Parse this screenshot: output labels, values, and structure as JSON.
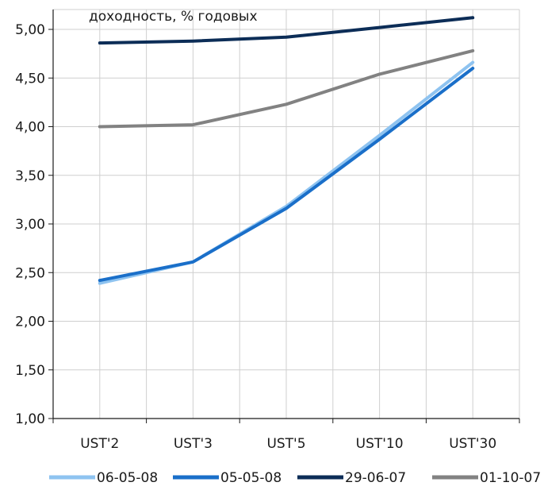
{
  "chart_data": {
    "type": "line",
    "title": "доходность, % годовых",
    "categories": [
      "UST'2",
      "UST'3",
      "UST'5",
      "UST'10",
      "UST'30"
    ],
    "ylim": [
      1.0,
      5.25
    ],
    "yticks": [
      "1,00",
      "1,50",
      "2,00",
      "2,50",
      "3,00",
      "3,50",
      "4,00",
      "4,50",
      "5,00"
    ],
    "grid": true,
    "legend_position": "bottom",
    "series": [
      {
        "name": "06-05-08",
        "color": "#8ec3f0",
        "values": [
          2.39,
          2.61,
          3.18,
          3.91,
          4.66
        ]
      },
      {
        "name": "05-05-08",
        "color": "#1a6fc9",
        "values": [
          2.42,
          2.61,
          3.16,
          3.87,
          4.6
        ]
      },
      {
        "name": "29-06-07",
        "color": "#0c2d57",
        "values": [
          4.86,
          4.88,
          4.92,
          5.02,
          5.12
        ]
      },
      {
        "name": "01-10-07",
        "color": "#828282",
        "values": [
          4.0,
          4.02,
          4.23,
          4.54,
          4.78
        ]
      }
    ]
  }
}
